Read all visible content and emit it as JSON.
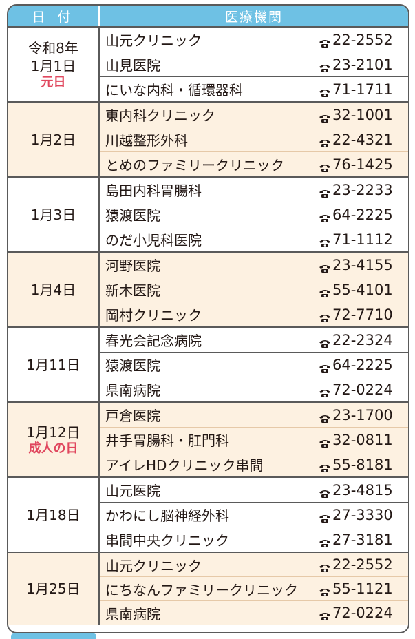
{
  "header": {
    "date_label": "日 付",
    "institution_label": "医療機関"
  },
  "colors": {
    "header_bg": "#6ec1e4",
    "shade_bg": "#fdf1e1",
    "holiday_text": "#e0475e"
  },
  "groups": [
    {
      "date_lines": [
        "令和8年",
        "1月1日"
      ],
      "holiday": "元日",
      "shaded": false,
      "rows": [
        {
          "name": "山元クリニック",
          "tel": "22-2552"
        },
        {
          "name": "山見医院",
          "tel": "23-2101"
        },
        {
          "name": "にいな内科・循環器科",
          "tel": "71-1711"
        }
      ]
    },
    {
      "date_lines": [
        "1月2日"
      ],
      "holiday": "",
      "shaded": true,
      "rows": [
        {
          "name": "東内科クリニック",
          "tel": "32-1001"
        },
        {
          "name": "川越整形外科",
          "tel": "22-4321"
        },
        {
          "name": "とめのファミリークリニック",
          "tel": "76-1425"
        }
      ]
    },
    {
      "date_lines": [
        "1月3日"
      ],
      "holiday": "",
      "shaded": false,
      "rows": [
        {
          "name": "島田内科胃腸科",
          "tel": "23-2233"
        },
        {
          "name": "猿渡医院",
          "tel": "64-2225"
        },
        {
          "name": "のだ小児科医院",
          "tel": "71-1112"
        }
      ]
    },
    {
      "date_lines": [
        "1月4日"
      ],
      "holiday": "",
      "shaded": true,
      "rows": [
        {
          "name": "河野医院",
          "tel": "23-4155"
        },
        {
          "name": "新木医院",
          "tel": "55-4101"
        },
        {
          "name": "岡村クリニック",
          "tel": "72-7710"
        }
      ]
    },
    {
      "date_lines": [
        "1月11日"
      ],
      "holiday": "",
      "shaded": false,
      "rows": [
        {
          "name": "春光会記念病院",
          "tel": "22-2324"
        },
        {
          "name": "猿渡医院",
          "tel": "64-2225"
        },
        {
          "name": "県南病院",
          "tel": "72-0224"
        }
      ]
    },
    {
      "date_lines": [
        "1月12日"
      ],
      "holiday": "成人の日",
      "shaded": true,
      "rows": [
        {
          "name": "戸倉医院",
          "tel": "23-1700"
        },
        {
          "name": "井手胃腸科・肛門科",
          "tel": "32-0811"
        },
        {
          "name": "アイレHDクリニック串間",
          "tel": "55-8181"
        }
      ]
    },
    {
      "date_lines": [
        "1月18日"
      ],
      "holiday": "",
      "shaded": false,
      "rows": [
        {
          "name": "山元医院",
          "tel": "23-4815"
        },
        {
          "name": "かわにし脳神経外科",
          "tel": "27-3330"
        },
        {
          "name": "串間中央クリニック",
          "tel": "27-3181"
        }
      ]
    },
    {
      "date_lines": [
        "1月25日"
      ],
      "holiday": "",
      "shaded": true,
      "rows": [
        {
          "name": "山元クリニック",
          "tel": "22-2552"
        },
        {
          "name": "にちなんファミリークリニック",
          "tel": "55-1121"
        },
        {
          "name": "県南病院",
          "tel": "72-0224"
        }
      ]
    }
  ]
}
